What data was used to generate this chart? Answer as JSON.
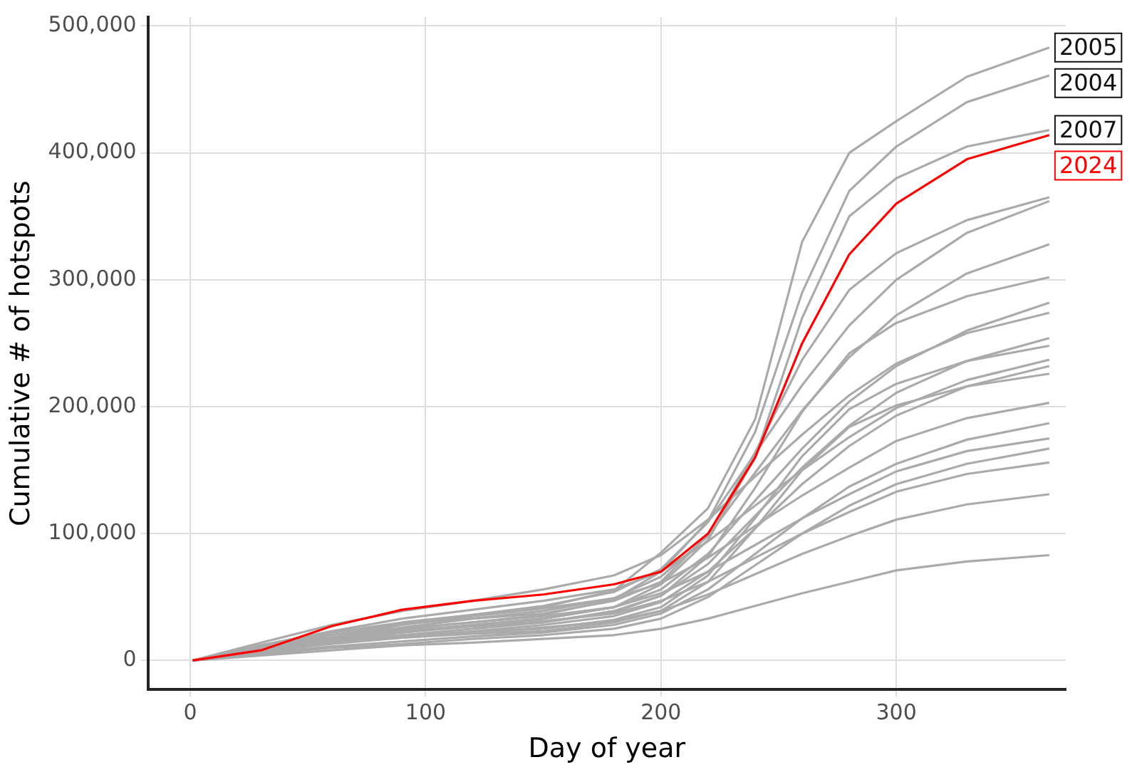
{
  "chart_data": {
    "type": "line",
    "xlabel": "Day of year",
    "ylabel": "Cumulative # of hotspots",
    "x": [
      1,
      30,
      60,
      90,
      120,
      150,
      180,
      200,
      220,
      240,
      260,
      280,
      300,
      330,
      365
    ],
    "xlim": [
      -18,
      372
    ],
    "xticks": [
      0,
      100,
      200,
      300
    ],
    "ylim": [
      -23000,
      507000
    ],
    "yticks": [
      {
        "value": 0,
        "label": "0"
      },
      {
        "value": 100000,
        "label": "100,000"
      },
      {
        "value": 200000,
        "label": "200,000"
      },
      {
        "value": 300000,
        "label": "300,000"
      },
      {
        "value": 400000,
        "label": "400,000"
      },
      {
        "value": 500000,
        "label": "500,000"
      }
    ],
    "grid": true,
    "legend": false,
    "marker": "none",
    "line_style": "solid",
    "series": [
      {
        "name": "2024",
        "color": "#ff0000",
        "values": [
          0,
          8000,
          27000,
          40000,
          47000,
          52000,
          60000,
          70000,
          100000,
          160000,
          250000,
          320000,
          360000,
          395000,
          414000
        ]
      },
      {
        "name": "2005",
        "color": "#aaaaaa",
        "values": [
          0,
          12000,
          22000,
          30000,
          36000,
          42000,
          55000,
          85000,
          120000,
          190000,
          330000,
          400000,
          425000,
          460000,
          483000
        ]
      },
      {
        "name": "2004",
        "color": "#aaaaaa",
        "values": [
          0,
          10000,
          18000,
          25000,
          30000,
          36000,
          48000,
          70000,
          110000,
          180000,
          290000,
          370000,
          405000,
          440000,
          461000
        ]
      },
      {
        "name": "2007",
        "color": "#aaaaaa",
        "values": [
          0,
          9000,
          17000,
          23000,
          28000,
          33000,
          42000,
          60000,
          95000,
          160000,
          270000,
          350000,
          380000,
          405000,
          418000
        ]
      },
      {
        "color": "#aaaaaa",
        "values": [
          0,
          11000,
          22000,
          29000,
          33000,
          37000,
          47000,
          62000,
          99000,
          164000,
          237000,
          292000,
          321000,
          347000,
          365000
        ]
      },
      {
        "color": "#aaaaaa",
        "values": [
          0,
          11000,
          22000,
          29000,
          36000,
          43000,
          54000,
          72000,
          109000,
          163000,
          217000,
          264000,
          300000,
          337000,
          362000
        ]
      },
      {
        "color": "#aaaaaa",
        "values": [
          0,
          10000,
          20000,
          26000,
          33000,
          39000,
          49000,
          66000,
          98000,
          148000,
          197000,
          239000,
          272000,
          305000,
          328000
        ]
      },
      {
        "color": "#aaaaaa",
        "values": [
          0,
          9000,
          18000,
          24000,
          27000,
          30000,
          39000,
          51000,
          82000,
          136000,
          196000,
          242000,
          266000,
          287000,
          302000
        ]
      },
      {
        "color": "#aaaaaa",
        "values": [
          0,
          8000,
          17000,
          22000,
          28000,
          33000,
          42000,
          56000,
          84000,
          126000,
          167000,
          204000,
          232000,
          260000,
          282000
        ]
      },
      {
        "color": "#aaaaaa",
        "values": [
          0,
          14000,
          28000,
          39000,
          47000,
          56000,
          67000,
          83000,
          111000,
          145000,
          178000,
          209000,
          234000,
          258000,
          274000
        ]
      },
      {
        "color": "#aaaaaa",
        "values": [
          0,
          8000,
          15000,
          20000,
          25000,
          30000,
          38000,
          51000,
          76000,
          114000,
          152000,
          185000,
          211000,
          236000,
          254000
        ]
      },
      {
        "color": "#aaaaaa",
        "values": [
          0,
          7000,
          15000,
          20000,
          22000,
          25000,
          32000,
          42000,
          67000,
          112000,
          161000,
          198000,
          218000,
          236000,
          248000
        ]
      },
      {
        "color": "#aaaaaa",
        "values": [
          0,
          12000,
          23000,
          33000,
          40000,
          47000,
          56000,
          70000,
          94000,
          122000,
          150000,
          176000,
          199000,
          221000,
          237000
        ]
      },
      {
        "color": "#aaaaaa",
        "values": [
          0,
          7000,
          14000,
          19000,
          23000,
          28000,
          35000,
          46000,
          70000,
          104000,
          139000,
          169000,
          193000,
          216000,
          232000
        ]
      },
      {
        "color": "#aaaaaa",
        "values": [
          0,
          7000,
          14000,
          18000,
          21000,
          23000,
          30000,
          39000,
          62000,
          104000,
          150000,
          184000,
          201000,
          216000,
          226000
        ]
      },
      {
        "color": "#aaaaaa",
        "values": [
          0,
          10000,
          20000,
          28000,
          35000,
          41000,
          49000,
          61000,
          81000,
          106000,
          130000,
          152000,
          173000,
          191000,
          203000
        ]
      },
      {
        "color": "#aaaaaa",
        "values": [
          0,
          6000,
          11000,
          15000,
          19000,
          22000,
          28000,
          37000,
          56000,
          84000,
          112000,
          137000,
          155000,
          174000,
          187000
        ]
      },
      {
        "color": "#aaaaaa",
        "values": [
          0,
          9000,
          18000,
          25000,
          30000,
          35000,
          42000,
          53000,
          70000,
          91000,
          112000,
          131000,
          149000,
          165000,
          175000
        ]
      },
      {
        "color": "#aaaaaa",
        "values": [
          0,
          5000,
          10000,
          13000,
          17000,
          20000,
          25000,
          33000,
          50000,
          75000,
          100000,
          122000,
          139000,
          155000,
          167000
        ]
      },
      {
        "color": "#aaaaaa",
        "values": [
          0,
          8000,
          16000,
          22000,
          27000,
          31000,
          37000,
          47000,
          62000,
          81000,
          100000,
          117000,
          133000,
          147000,
          156000
        ]
      },
      {
        "color": "#aaaaaa",
        "values": [
          0,
          7000,
          13000,
          18000,
          22000,
          26000,
          31000,
          39000,
          52000,
          68000,
          84000,
          98000,
          111000,
          123000,
          131000
        ]
      },
      {
        "color": "#aaaaaa",
        "values": [
          0,
          4000,
          8000,
          12000,
          14000,
          17000,
          20000,
          25000,
          33000,
          43000,
          53000,
          62000,
          71000,
          78000,
          83000
        ]
      }
    ]
  }
}
